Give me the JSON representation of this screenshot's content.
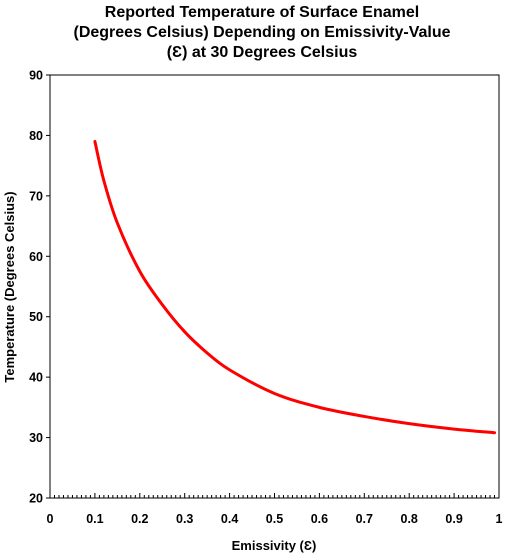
{
  "chart_data": {
    "type": "line",
    "title": [
      "Reported Temperature of Surface Enamel",
      "(Degrees Celsius) Depending on Emissivity-Value",
      "(Ɛ) at 30 Degrees Celsius"
    ],
    "xlabel": "Emissivity (Ɛ)",
    "ylabel": "Temperature (Degrees Celsius)",
    "xlim": [
      0,
      1
    ],
    "ylim": [
      20,
      90
    ],
    "x_ticks": [
      "0",
      "0.1",
      "0.2",
      "0.3",
      "0.4",
      "0.5",
      "0.6",
      "0.7",
      "0.8",
      "0.9",
      "1"
    ],
    "y_ticks": [
      "20",
      "30",
      "40",
      "50",
      "60",
      "70",
      "80",
      "90"
    ],
    "grid": false,
    "series": [
      {
        "color": "#ff0000",
        "x": [
          0.1,
          0.12,
          0.15,
          0.2,
          0.25,
          0.3,
          0.35,
          0.4,
          0.5,
          0.6,
          0.7,
          0.8,
          0.9,
          0.99
        ],
        "y": [
          79,
          72.5,
          65.5,
          57.5,
          52.0,
          47.5,
          44.0,
          41.2,
          37.3,
          35.0,
          33.5,
          32.3,
          31.4,
          30.8
        ]
      }
    ]
  }
}
